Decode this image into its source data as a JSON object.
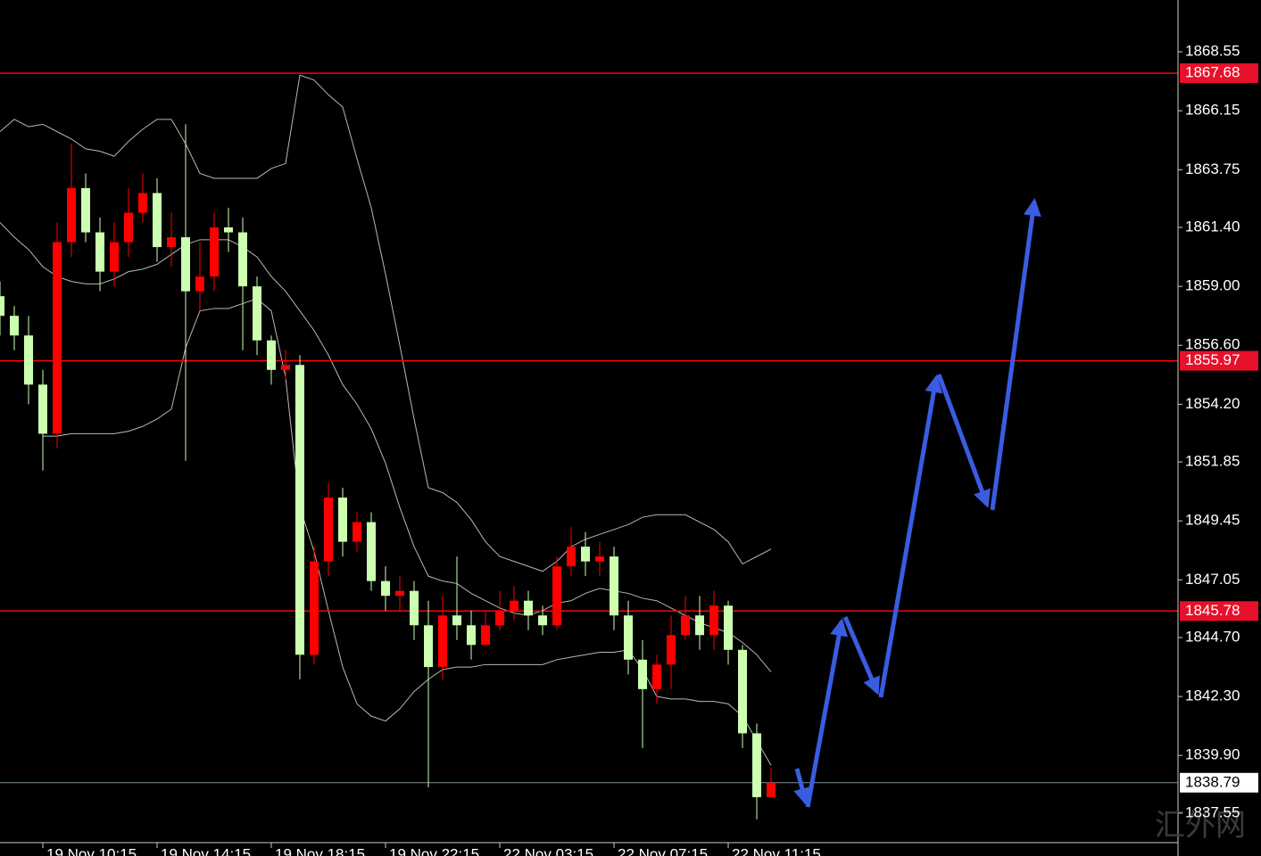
{
  "chart_data": {
    "type": "candlestick",
    "categories": [
      null,
      null,
      null,
      "19 Nov 10:15",
      null,
      null,
      null,
      null,
      null,
      null,
      null,
      "19 Nov 14:15",
      null,
      null,
      null,
      null,
      null,
      null,
      null,
      "19 Nov 18:15",
      null,
      null,
      null,
      null,
      null,
      null,
      null,
      "19 Nov 22:15",
      null,
      null,
      null,
      null,
      null,
      null,
      null,
      "22 Nov 03:15",
      null,
      null,
      null,
      null,
      null,
      null,
      null,
      "22 Nov 07:15",
      null,
      null,
      null,
      null,
      null,
      null,
      null,
      "22 Nov 11:15",
      null,
      null,
      null
    ],
    "open": [
      1858.6,
      1857.8,
      1857.0,
      1855.0,
      1853.0,
      1860.8,
      1863.0,
      1861.2,
      1859.6,
      1860.8,
      1862.0,
      1862.8,
      1860.6,
      1861.0,
      1858.8,
      1859.4,
      1861.4,
      1861.2,
      1859.0,
      1856.8,
      1855.6,
      1855.8,
      1844.0,
      1847.8,
      1850.4,
      1848.6,
      1849.4,
      1847.0,
      1846.4,
      1846.6,
      1845.2,
      1843.5,
      1845.6,
      1845.2,
      1844.4,
      1845.2,
      1845.8,
      1846.2,
      1845.6,
      1845.2,
      1847.6,
      1848.4,
      1847.8,
      1848.0,
      1845.6,
      1843.8,
      1842.6,
      1843.6,
      1844.8,
      1845.6,
      1844.8,
      1846.0,
      1844.2,
      1840.8,
      1838.2
    ],
    "high": [
      1859.2,
      1858.2,
      1857.8,
      1855.6,
      1861.6,
      1864.8,
      1863.6,
      1861.8,
      1861.6,
      1863.0,
      1863.6,
      1863.4,
      1862.0,
      1865.6,
      1860.8,
      1862.0,
      1862.2,
      1861.8,
      1859.4,
      1857.0,
      1856.4,
      1856.2,
      1848.4,
      1851.0,
      1850.8,
      1849.8,
      1849.8,
      1847.6,
      1847.2,
      1847.0,
      1846.2,
      1846.4,
      1848.0,
      1845.8,
      1845.8,
      1846.6,
      1846.8,
      1846.6,
      1846.0,
      1848.0,
      1849.2,
      1849.0,
      1848.6,
      1848.4,
      1846.2,
      1844.6,
      1844.0,
      1845.6,
      1846.4,
      1846.4,
      1846.6,
      1846.2,
      1844.4,
      1841.2,
      1839.4
    ],
    "low": [
      1857.0,
      1856.4,
      1854.2,
      1851.5,
      1852.4,
      1860.2,
      1860.8,
      1858.8,
      1859.0,
      1860.2,
      1861.6,
      1860.0,
      1859.8,
      1851.9,
      1858.0,
      1858.8,
      1860.4,
      1856.4,
      1856.2,
      1855.0,
      1855.2,
      1843.0,
      1843.6,
      1847.2,
      1848.0,
      1848.2,
      1846.6,
      1845.8,
      1845.8,
      1844.6,
      1838.6,
      1843.0,
      1844.6,
      1843.8,
      1844.4,
      1845.0,
      1845.4,
      1845.0,
      1844.8,
      1845.0,
      1847.2,
      1847.2,
      1847.2,
      1845.0,
      1843.2,
      1840.2,
      1842.0,
      1842.6,
      1844.6,
      1844.2,
      1844.2,
      1843.6,
      1840.2,
      1837.3,
      1838.2
    ],
    "close": [
      1857.8,
      1857.0,
      1855.0,
      1853.0,
      1860.8,
      1863.0,
      1861.2,
      1859.6,
      1860.8,
      1862.0,
      1862.8,
      1860.6,
      1861.0,
      1858.8,
      1859.4,
      1861.4,
      1861.2,
      1859.0,
      1856.8,
      1855.6,
      1855.8,
      1844.0,
      1847.8,
      1850.4,
      1848.6,
      1849.4,
      1847.0,
      1846.4,
      1846.6,
      1845.2,
      1843.5,
      1845.6,
      1845.2,
      1844.4,
      1845.2,
      1845.8,
      1846.2,
      1845.6,
      1845.2,
      1847.6,
      1848.4,
      1847.8,
      1848.0,
      1845.6,
      1843.8,
      1842.6,
      1843.6,
      1844.8,
      1845.6,
      1844.8,
      1846.0,
      1844.2,
      1840.8,
      1838.2,
      1838.79
    ],
    "up_color": "#ff0000",
    "down_color": "#ccffb0",
    "bollinger": {
      "color": "#b8b8b8",
      "upper": [
        1865.3,
        1865.8,
        1865.5,
        1865.6,
        1865.3,
        1865.0,
        1864.6,
        1864.5,
        1864.3,
        1864.9,
        1865.4,
        1865.8,
        1865.8,
        1864.8,
        1863.6,
        1863.4,
        1863.4,
        1863.4,
        1863.4,
        1863.8,
        1864.0,
        1867.6,
        1867.4,
        1866.8,
        1866.3,
        1864.2,
        1862.2,
        1859.5,
        1856.6,
        1853.6,
        1850.8,
        1850.6,
        1850.2,
        1849.5,
        1848.6,
        1848.0,
        1847.8,
        1847.6,
        1847.4,
        1847.8,
        1848.4,
        1848.7,
        1848.9,
        1849.1,
        1849.3,
        1849.6,
        1849.7,
        1849.7,
        1849.7,
        1849.4,
        1849.1,
        1848.6,
        1847.7,
        1848.0,
        1848.3
      ],
      "middle": [
        1861.6,
        1861.0,
        1860.5,
        1859.8,
        1859.4,
        1859.2,
        1859.1,
        1859.1,
        1859.3,
        1859.6,
        1859.7,
        1859.9,
        1860.3,
        1860.7,
        1860.9,
        1860.9,
        1860.9,
        1860.6,
        1860.2,
        1859.4,
        1858.8,
        1858.0,
        1857.2,
        1856.2,
        1855.0,
        1854.2,
        1853.2,
        1851.8,
        1850.0,
        1848.4,
        1847.2,
        1847.0,
        1846.9,
        1846.5,
        1846.2,
        1845.9,
        1845.7,
        1845.6,
        1845.8,
        1846.1,
        1846.2,
        1846.5,
        1846.7,
        1846.6,
        1846.5,
        1846.3,
        1846.2,
        1845.9,
        1845.6,
        1845.3,
        1845.1,
        1844.9,
        1844.5,
        1844.0,
        1843.3
      ],
      "lower": [
        null,
        null,
        null,
        1852.9,
        1852.9,
        1853.0,
        1853.0,
        1853.0,
        1853.0,
        1853.1,
        1853.3,
        1853.6,
        1854.0,
        1856.5,
        1858.0,
        1858.1,
        1858.1,
        1858.3,
        1858.5,
        1858.0,
        1855.3,
        1850.0,
        1848.2,
        1845.8,
        1843.5,
        1842.0,
        1841.5,
        1841.3,
        1841.8,
        1842.5,
        1843.0,
        1843.4,
        1843.5,
        1843.5,
        1843.6,
        1843.6,
        1843.6,
        1843.6,
        1843.6,
        1843.8,
        1843.9,
        1844.0,
        1844.1,
        1844.1,
        1844.2,
        1843.4,
        1842.3,
        1842.2,
        1842.2,
        1842.1,
        1842.1,
        1842.0,
        1841.5,
        1840.5,
        1839.5
      ]
    },
    "levels": [
      {
        "value": 1867.68,
        "color": "#ff0000"
      },
      {
        "value": 1855.97,
        "color": "#ff0000"
      },
      {
        "value": 1845.78,
        "color": "#ff0000"
      }
    ],
    "current": {
      "value": 1838.79,
      "color": "#7f9299"
    },
    "ylim": [
      1836.35,
      1870.66
    ],
    "yticks": [
      1868.55,
      1866.15,
      1863.75,
      {
        "value": 1861.4,
        "label": "1861.40"
      },
      {
        "value": 1859,
        "label": "1859.00"
      },
      {
        "value": 1856.6,
        "label": "1856.60"
      },
      {
        "value": 1854.2,
        "label": "1854.20"
      },
      1851.85,
      1849.45,
      1847.05,
      {
        "value": 1844.7,
        "label": "1844.70"
      },
      {
        "value": 1842.3,
        "label": "1842.30"
      },
      {
        "value": 1839.9,
        "label": "1839.90"
      },
      1837.55
    ],
    "watermark": "汇外网"
  }
}
